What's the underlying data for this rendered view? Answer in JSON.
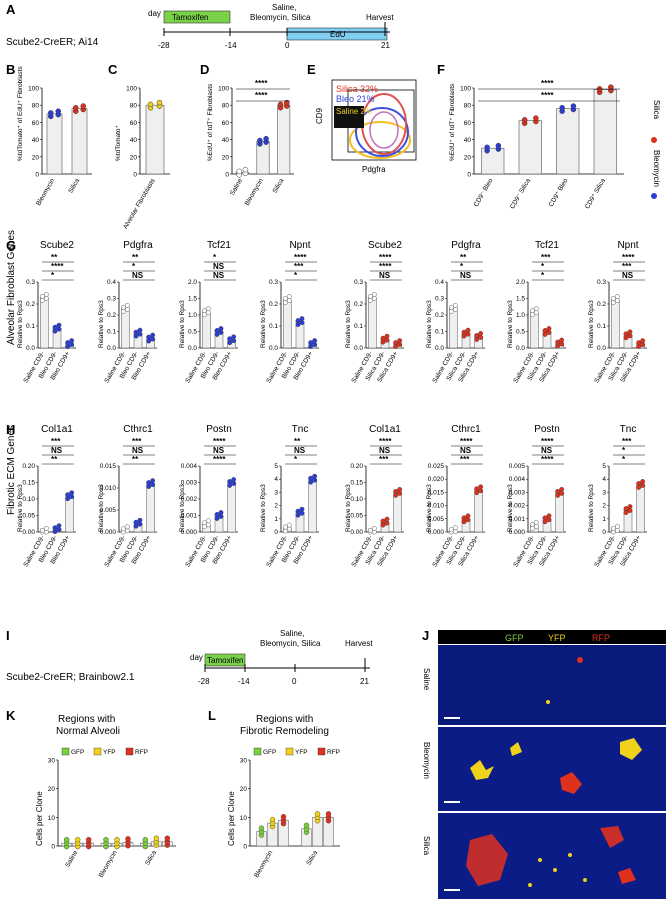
{
  "figure": {
    "panel_labels": {
      "A": "A",
      "B": "B",
      "C": "C",
      "D": "D",
      "E": "E",
      "F": "F",
      "G": "G",
      "H": "H",
      "I": "I",
      "J": "J",
      "K": "K",
      "L": "L"
    },
    "timeline_A": {
      "mouse": "Scube2-CreER; Ai14",
      "day_word": "day",
      "tamoxifen": "Tamoxifen",
      "edu": "EdU",
      "treatment_line1": "Saline,",
      "treatment_line2": "Bleomycin, Silica",
      "harvest": "Harvest",
      "days": [
        "-28",
        "-14",
        "0",
        "21"
      ]
    },
    "timeline_I": {
      "mouse": "Scube2-CreER; Brainbow2.1",
      "day_word": "day",
      "tamoxifen": "Tamoxifen",
      "treatment_line1": "Saline,",
      "treatment_line2": "Bleomycin, Silica",
      "harvest": "Harvest",
      "days": [
        "-28",
        "-14",
        "0",
        "21"
      ]
    },
    "colors": {
      "saline": "#ffffff",
      "bleo": "#2b3fd6",
      "silica": "#e0301e",
      "gfp": "#7ccf3a",
      "yfp": "#f0d21a",
      "rfp": "#e0301e",
      "tamoxifen": "#7ad14a",
      "edu": "#7fcdf0"
    },
    "row_labels": {
      "G": "Alveolar Fibroblast Genes",
      "H": "Fibrotic ECM Genes",
      "G_sub": "Relative to Rps3",
      "H_sub": "Relative to Rps3"
    },
    "microscopy": {
      "legend": [
        "GFP",
        "YFP",
        "RFP"
      ],
      "rows": [
        "Saline",
        "Bleomycin",
        "Silica"
      ]
    },
    "flow_E": {
      "silica": "Silica 32%",
      "bleo": "Bleo  21%",
      "saline": "Saline 2%",
      "yaxis": "CD9",
      "xaxis": "Pdgfra"
    },
    "panel_F_legend": [
      "Silica",
      "Bleomycin"
    ],
    "panel_F_x": [
      "CD9⁻",
      "CD9⁺"
    ],
    "panel_K_title": [
      "Regions with",
      "Normal Alveoli"
    ],
    "panel_L_title": [
      "Regions with",
      "Fibrotic Remodeling"
    ],
    "clone_legend": [
      "GFP",
      "YFP",
      "RFP"
    ],
    "clone_ylabel": "Cells per Clone"
  },
  "chart_data": [
    {
      "panel": "B",
      "type": "bar",
      "ylabel": "%tdTomato⁺ of EdU⁺ Fibroblasts",
      "categories": [
        "Bleomycin",
        "Silica"
      ],
      "values": [
        70,
        76
      ],
      "ylim": [
        0,
        100
      ],
      "yticks": [
        0,
        20,
        40,
        60,
        80,
        100
      ]
    },
    {
      "panel": "C",
      "type": "bar",
      "ylabel": "%tdTomato⁺",
      "categories": [
        "Alveolar Fibroblasts"
      ],
      "values": [
        80
      ],
      "ylim": [
        0,
        100
      ],
      "yticks": [
        0,
        20,
        40,
        60,
        80,
        100
      ]
    },
    {
      "panel": "D",
      "type": "bar",
      "ylabel": "%EdU⁺ of tdT⁺ Fibroblasts",
      "categories": [
        "Saline",
        "Bleomycin",
        "Silica"
      ],
      "values": [
        2,
        38,
        80
      ],
      "ylim": [
        0,
        100
      ],
      "yticks": [
        0,
        20,
        40,
        60,
        80,
        100
      ],
      "sig": [
        "****",
        "****"
      ]
    },
    {
      "panel": "F",
      "type": "bar",
      "ylabel": "%EdU⁺ of tdT⁺ Fibroblasts",
      "categories": [
        "CD9⁻ Bleo",
        "CD9⁻ Silica",
        "CD9⁺ Bleo",
        "CD9⁺ Silica"
      ],
      "values": [
        30,
        62,
        76,
        98
      ],
      "ylim": [
        0,
        100
      ],
      "yticks": [
        0,
        20,
        40,
        60,
        80,
        100
      ],
      "sig": [
        "****",
        "****"
      ]
    },
    {
      "panel": "G",
      "type": "bar",
      "group": "Bleo",
      "genes": [
        "Scube2",
        "Pdgfra",
        "Tcf21",
        "Npnt"
      ],
      "categories": [
        "Saline CD9-",
        "Bleo CD9-",
        "Bleo CD9+"
      ],
      "values": [
        [
          0.23,
          0.09,
          0.02
        ],
        [
          0.24,
          0.09,
          0.06
        ],
        [
          1.1,
          0.5,
          0.25
        ],
        [
          0.22,
          0.12,
          0.02
        ]
      ],
      "ylims": [
        [
          0,
          0.3
        ],
        [
          0,
          0.4
        ],
        [
          0,
          2.0
        ],
        [
          0,
          0.3
        ]
      ],
      "yticks": [
        [
          "0.0",
          "0.1",
          "0.2",
          "0.3"
        ],
        [
          "0.0",
          "0.1",
          "0.2",
          "0.3",
          "0.4"
        ],
        [
          "0.0",
          "0.5",
          "1.0",
          "1.5",
          "2.0"
        ],
        [
          "0.0",
          "0.1",
          "0.2",
          "0.3"
        ]
      ],
      "sig": [
        [
          "**",
          "****",
          "*"
        ],
        [
          "**",
          "*",
          "NS"
        ],
        [
          "*",
          "NS",
          "NS"
        ],
        [
          "****",
          "***",
          "*"
        ]
      ]
    },
    {
      "panel": "G",
      "type": "bar",
      "group": "Silica",
      "genes": [
        "Scube2",
        "Pdgfra",
        "Tcf21",
        "Npnt"
      ],
      "categories": [
        "Saline CD9-",
        "Silica CD9-",
        "Silica CD9+"
      ],
      "values": [
        [
          0.23,
          0.04,
          0.02
        ],
        [
          0.24,
          0.09,
          0.07
        ],
        [
          1.1,
          0.5,
          0.15
        ],
        [
          0.22,
          0.06,
          0.02
        ]
      ],
      "ylims": [
        [
          0,
          0.3
        ],
        [
          0,
          0.4
        ],
        [
          0,
          2.0
        ],
        [
          0,
          0.3
        ]
      ],
      "yticks": [
        [
          "0.0",
          "0.1",
          "0.2",
          "0.3"
        ],
        [
          "0.0",
          "0.1",
          "0.2",
          "0.3",
          "0.4"
        ],
        [
          "0.0",
          "0.5",
          "1.0",
          "1.5",
          "2.0"
        ],
        [
          "0.0",
          "0.1",
          "0.2",
          "0.3"
        ]
      ],
      "sig": [
        [
          "****",
          "****",
          "NS"
        ],
        [
          "**",
          "*",
          "NS"
        ],
        [
          "***",
          "*",
          "*"
        ],
        [
          "****",
          "***",
          "NS"
        ]
      ]
    },
    {
      "panel": "H",
      "type": "bar",
      "group": "Bleo",
      "genes": [
        "Col1a1",
        "Cthrc1",
        "Postn",
        "Tnc"
      ],
      "categories": [
        "Saline CD9-",
        "Bleo CD9-",
        "Bleo CD9+"
      ],
      "values": [
        [
          0.002,
          0.01,
          0.11
        ],
        [
          0.0005,
          0.002,
          0.011
        ],
        [
          0.0005,
          0.001,
          0.003
        ],
        [
          0.3,
          1.5,
          4.0
        ]
      ],
      "ylims": [
        [
          0,
          0.2
        ],
        [
          0,
          0.015
        ],
        [
          0,
          0.004
        ],
        [
          0,
          5
        ]
      ],
      "yticks": [
        [
          "0.00",
          "0.05",
          "0.10",
          "0.15",
          "0.20"
        ],
        [
          "0.000",
          "0.005",
          "0.010",
          "0.015"
        ],
        [
          "0.000",
          "0.001",
          "0.002",
          "0.003",
          "0.004"
        ],
        [
          "0",
          "1",
          "2",
          "3",
          "4",
          "5"
        ]
      ],
      "sig": [
        [
          "***",
          "NS",
          "**"
        ],
        [
          "***",
          "NS",
          "**"
        ],
        [
          "****",
          "NS",
          "****"
        ],
        [
          "**",
          "NS",
          "*"
        ]
      ]
    },
    {
      "panel": "H",
      "type": "bar",
      "group": "Silica",
      "genes": [
        "Col1a1",
        "Cthrc1",
        "Postn",
        "Tnc"
      ],
      "categories": [
        "Saline CD9-",
        "Silica CD9-",
        "Silica CD9+"
      ],
      "values": [
        [
          0.002,
          0.03,
          0.12
        ],
        [
          0.0005,
          0.005,
          0.016
        ],
        [
          0.0005,
          0.001,
          0.003
        ],
        [
          0.2,
          1.7,
          3.6
        ]
      ],
      "ylims": [
        [
          0,
          0.2
        ],
        [
          0,
          0.025
        ],
        [
          0,
          0.005
        ],
        [
          0,
          5
        ]
      ],
      "yticks": [
        [
          "0.00",
          "0.05",
          "0.10",
          "0.15",
          "0.20"
        ],
        [
          "0.000",
          "0.005",
          "0.010",
          "0.015",
          "0.020",
          "0.025"
        ],
        [
          "0.000",
          "0.001",
          "0.002",
          "0.003",
          "0.004",
          "0.005"
        ],
        [
          "0",
          "1",
          "2",
          "3",
          "4",
          "5"
        ]
      ],
      "sig": [
        [
          "****",
          "NS",
          "***"
        ],
        [
          "****",
          "NS",
          "***"
        ],
        [
          "****",
          "NS",
          "****"
        ],
        [
          "***",
          "*",
          "*"
        ]
      ]
    },
    {
      "panel": "K",
      "type": "bar",
      "categories": [
        "Saline",
        "Bleomycin",
        "Silica"
      ],
      "series": [
        {
          "name": "GFP",
          "values": [
            1,
            1,
            1
          ]
        },
        {
          "name": "YFP",
          "values": [
            1,
            1,
            1.5
          ]
        },
        {
          "name": "RFP",
          "values": [
            1,
            1.3,
            1.5
          ]
        }
      ],
      "ylim": [
        0,
        30
      ],
      "yticks": [
        0,
        10,
        20,
        30
      ]
    },
    {
      "panel": "L",
      "type": "bar",
      "categories": [
        "Bleomycin",
        "Silica"
      ],
      "series": [
        {
          "name": "GFP",
          "values": [
            5,
            6
          ]
        },
        {
          "name": "YFP",
          "values": [
            8,
            10
          ]
        },
        {
          "name": "RFP",
          "values": [
            9,
            10
          ]
        }
      ],
      "ylim": [
        0,
        30
      ],
      "yticks": [
        0,
        10,
        20,
        30
      ]
    }
  ]
}
